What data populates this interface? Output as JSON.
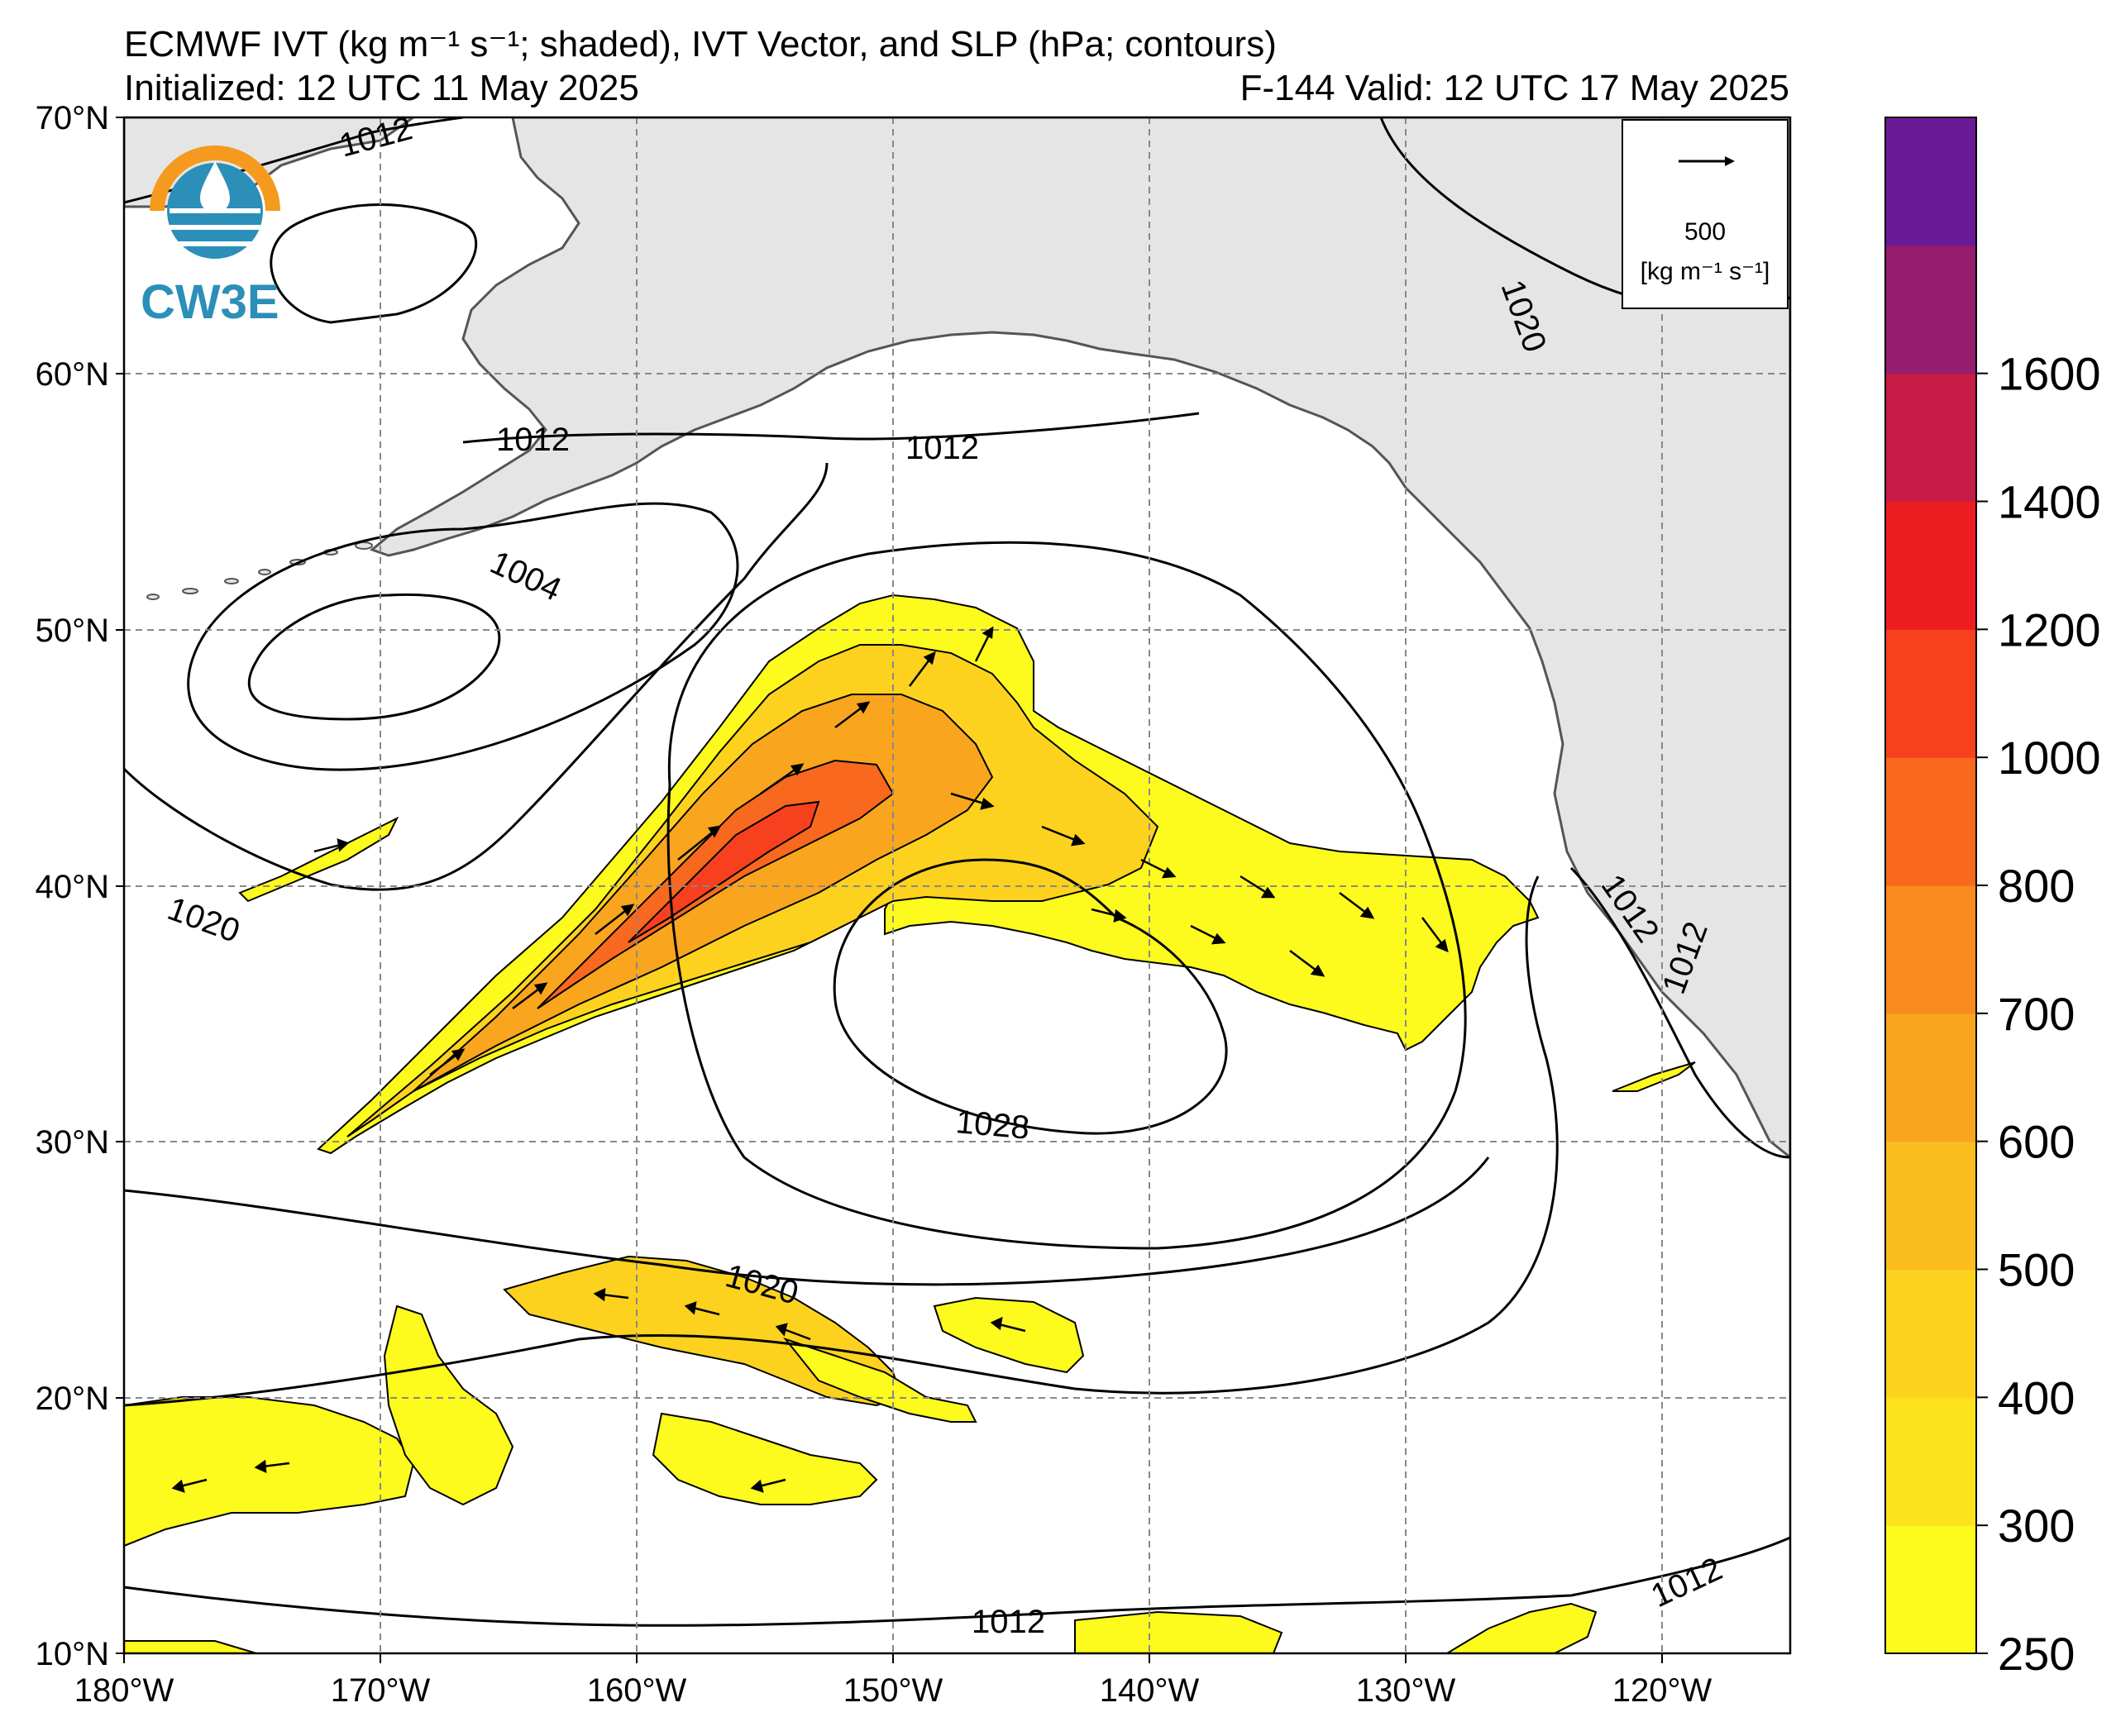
{
  "header": {
    "title": "ECMWF IVT (kg m⁻¹ s⁻¹; shaded), IVT Vector, and SLP (hPa; contours)",
    "initialized": "Initialized: 12 UTC 11 May 2025",
    "valid": "F-144  Valid: 12 UTC 17 May 2025"
  },
  "logo": {
    "text": "CW3E"
  },
  "map": {
    "lat_labels": [
      "70°N",
      "60°N",
      "50°N",
      "40°N",
      "30°N",
      "20°N",
      "10°N"
    ],
    "lon_labels": [
      "180°W",
      "170°W",
      "160°W",
      "150°W",
      "140°W",
      "130°W",
      "120°W"
    ],
    "lat_range": [
      10,
      70
    ],
    "lon_range": [
      -180,
      -115
    ],
    "gridlines": true,
    "land_color": "#e5e5e5",
    "slp_contour_labels": [
      "1012",
      "1012",
      "1012",
      "1004",
      "1020",
      "1020",
      "1028",
      "1020",
      "1012",
      "1012",
      "1012",
      "1012"
    ]
  },
  "vector_legend": {
    "value": "500",
    "unit": "[kg m⁻¹ s⁻¹]"
  },
  "colorbar": {
    "levels": [
      250,
      300,
      400,
      500,
      600,
      700,
      800,
      1000,
      1200,
      1400,
      1600,
      1800
    ],
    "tick_labels": [
      "250",
      "300",
      "400",
      "500",
      "600",
      "700",
      "800",
      "1000",
      "1200",
      "1400",
      "1600"
    ],
    "colors": [
      "#fdfa1e",
      "#fde31e",
      "#fcd21e",
      "#fbbe1e",
      "#f9a51e",
      "#f98b1e",
      "#f8681e",
      "#f7401e",
      "#ec1e22",
      "#c71c45",
      "#961c6e",
      "#6a1a96"
    ]
  }
}
